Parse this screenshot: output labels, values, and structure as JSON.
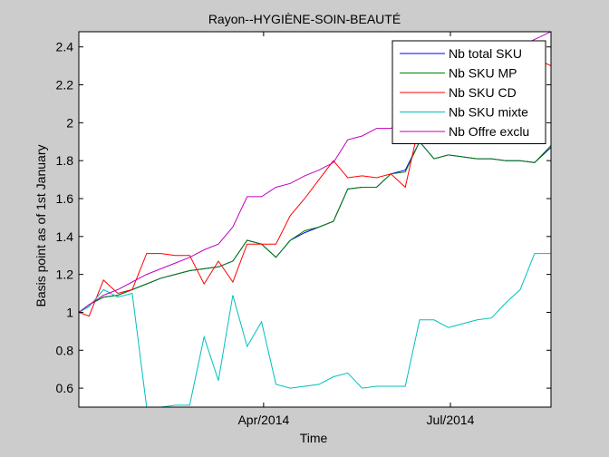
{
  "chart_data": {
    "type": "line",
    "title": "Rayon--HYGIÈNE-SOIN-BEAUTÉ",
    "xlabel": "Time",
    "ylabel": "Basis point as of 1st January",
    "ylim": [
      0.5,
      2.48
    ],
    "yticks": [
      0.6,
      0.8,
      1,
      1.2,
      1.4,
      1.6,
      1.8,
      2,
      2.2,
      2.4
    ],
    "ytick_labels": [
      "0.6",
      "0.8",
      "1",
      "1.2",
      "1.4",
      "1.6",
      "1.8",
      "2",
      "2.2",
      "2.4"
    ],
    "xlim": [
      "2014-01-01",
      "2014-08-19"
    ],
    "xticks": [
      "2014-04-01",
      "2014-07-01"
    ],
    "xtick_labels": [
      "Apr/2014",
      "Jul/2014"
    ],
    "grid": false,
    "legend_position": "top-right",
    "x": [
      "2014-01-01",
      "2014-01-06",
      "2014-01-13",
      "2014-01-20",
      "2014-01-27",
      "2014-02-03",
      "2014-02-10",
      "2014-02-17",
      "2014-02-24",
      "2014-03-03",
      "2014-03-10",
      "2014-03-17",
      "2014-03-24",
      "2014-03-31",
      "2014-04-07",
      "2014-04-14",
      "2014-04-21",
      "2014-04-28",
      "2014-05-05",
      "2014-05-12",
      "2014-05-19",
      "2014-05-26",
      "2014-06-02",
      "2014-06-09",
      "2014-06-16",
      "2014-06-23",
      "2014-06-30",
      "2014-07-07",
      "2014-07-14",
      "2014-07-21",
      "2014-07-28",
      "2014-08-04",
      "2014-08-11",
      "2014-08-19"
    ],
    "series": [
      {
        "name": "Nb total SKU",
        "color": "#0000ff",
        "values": [
          1.0,
          1.04,
          1.08,
          1.09,
          1.12,
          1.15,
          1.18,
          1.2,
          1.22,
          1.23,
          1.24,
          1.27,
          1.38,
          1.36,
          1.29,
          1.38,
          1.42,
          1.45,
          1.48,
          1.65,
          1.66,
          1.66,
          1.73,
          1.75,
          1.9,
          1.81,
          1.83,
          1.82,
          1.81,
          1.81,
          1.8,
          1.8,
          1.79,
          1.87
        ]
      },
      {
        "name": "Nb SKU MP",
        "color": "#008000",
        "values": [
          1.0,
          1.04,
          1.08,
          1.09,
          1.12,
          1.15,
          1.18,
          1.2,
          1.22,
          1.23,
          1.24,
          1.27,
          1.38,
          1.36,
          1.29,
          1.38,
          1.43,
          1.45,
          1.48,
          1.65,
          1.66,
          1.66,
          1.73,
          1.74,
          1.9,
          1.81,
          1.83,
          1.82,
          1.81,
          1.81,
          1.8,
          1.8,
          1.79,
          1.88
        ]
      },
      {
        "name": "Nb SKU CD",
        "color": "#ff0000",
        "values": [
          1.0,
          0.98,
          1.17,
          1.1,
          1.12,
          1.31,
          1.31,
          1.3,
          1.3,
          1.15,
          1.27,
          1.16,
          1.36,
          1.36,
          1.36,
          1.51,
          1.6,
          1.7,
          1.8,
          1.71,
          1.72,
          1.71,
          1.73,
          1.66,
          2.0,
          2.05,
          2.1,
          2.14,
          2.18,
          2.22,
          2.26,
          2.3,
          2.34,
          2.3
        ]
      },
      {
        "name": "Nb SKU mixte",
        "color": "#00bfbf",
        "values": [
          1.0,
          1.03,
          1.12,
          1.08,
          1.1,
          0.5,
          0.5,
          0.51,
          0.51,
          0.87,
          0.64,
          1.09,
          0.82,
          0.95,
          0.62,
          0.6,
          0.61,
          0.62,
          0.66,
          0.68,
          0.6,
          0.61,
          0.61,
          0.61,
          0.96,
          0.96,
          0.92,
          0.94,
          0.96,
          0.97,
          1.05,
          1.12,
          1.31,
          1.31
        ]
      },
      {
        "name": "Nb Offre exclu",
        "color": "#bf00bf",
        "values": [
          1.0,
          1.04,
          1.09,
          1.12,
          1.16,
          1.2,
          1.23,
          1.26,
          1.29,
          1.33,
          1.36,
          1.45,
          1.61,
          1.61,
          1.66,
          1.68,
          1.72,
          1.75,
          1.79,
          1.91,
          1.93,
          1.97,
          1.97,
          2.01,
          2.05,
          2.1,
          2.15,
          2.2,
          2.25,
          2.3,
          2.35,
          2.4,
          2.44,
          2.48
        ]
      }
    ]
  },
  "colors": {
    "figure_background": "#cccccc",
    "axes_background": "#ffffff",
    "axis_color": "#000000"
  }
}
